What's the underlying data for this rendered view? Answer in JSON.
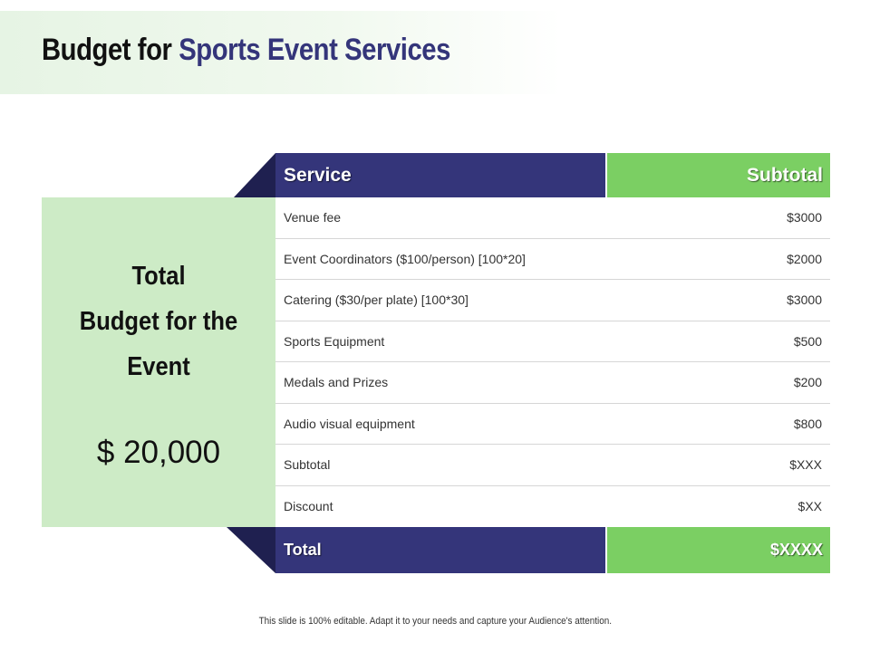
{
  "title": {
    "part1": "Budget for",
    "part2": "Sports Event Services"
  },
  "summary_card": {
    "heading_lines": [
      "Total",
      "Budget for the",
      "Event"
    ],
    "amount": "$ 20,000"
  },
  "table": {
    "header": {
      "service": "Service",
      "subtotal": "Subtotal"
    },
    "rows": [
      {
        "service": "Venue fee",
        "amount": "$3000"
      },
      {
        "service": "Event Coordinators  ($100/person)  [100*20]",
        "amount": "$2000"
      },
      {
        "service": "Catering  ($30/per plate)  [100*30]",
        "amount": "$3000"
      },
      {
        "service": "Sports Equipment",
        "amount": "$500"
      },
      {
        "service": "Medals and Prizes",
        "amount": "$200"
      },
      {
        "service": "Audio visual equipment",
        "amount": "$800"
      },
      {
        "service": "Subtotal",
        "amount": "$XXX"
      },
      {
        "service": "Discount",
        "amount": "$XX"
      }
    ],
    "footer": {
      "label": "Total",
      "amount": "$XXXX"
    }
  },
  "footnote": "This slide is 100% editable. Adapt it to your needs and capture your Audience's attention.",
  "colors": {
    "navy": "#34357a",
    "green": "#7bcf63",
    "light_green": "#cdebc6",
    "dark_navy": "#1f2050"
  }
}
